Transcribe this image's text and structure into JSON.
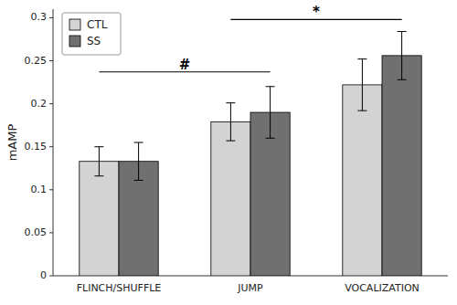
{
  "chart_data": {
    "type": "bar",
    "categories": [
      "FLINCH/SHUFFLE",
      "JUMP",
      "VOCALIZATION"
    ],
    "series": [
      {
        "name": "CTL",
        "color": "#d3d3d3",
        "values": [
          0.133,
          0.179,
          0.222
        ],
        "errors": [
          0.017,
          0.022,
          0.03
        ]
      },
      {
        "name": "SS",
        "color": "#707070",
        "values": [
          0.133,
          0.19,
          0.256
        ],
        "errors": [
          0.022,
          0.03,
          0.028
        ]
      }
    ],
    "ylabel": "mAMP",
    "ylim": [
      0,
      0.31
    ],
    "yticks": [
      0,
      0.05,
      0.1,
      0.15,
      0.2,
      0.25,
      0.3
    ],
    "legend": "upper left",
    "annotations": [
      {
        "text": "#",
        "y": 0.237,
        "x": [
          "FLINCH/SHUFFLE",
          "JUMP"
        ]
      },
      {
        "text": "*",
        "y": 0.298,
        "x": [
          "JUMP",
          "VOCALIZATION"
        ]
      }
    ]
  }
}
